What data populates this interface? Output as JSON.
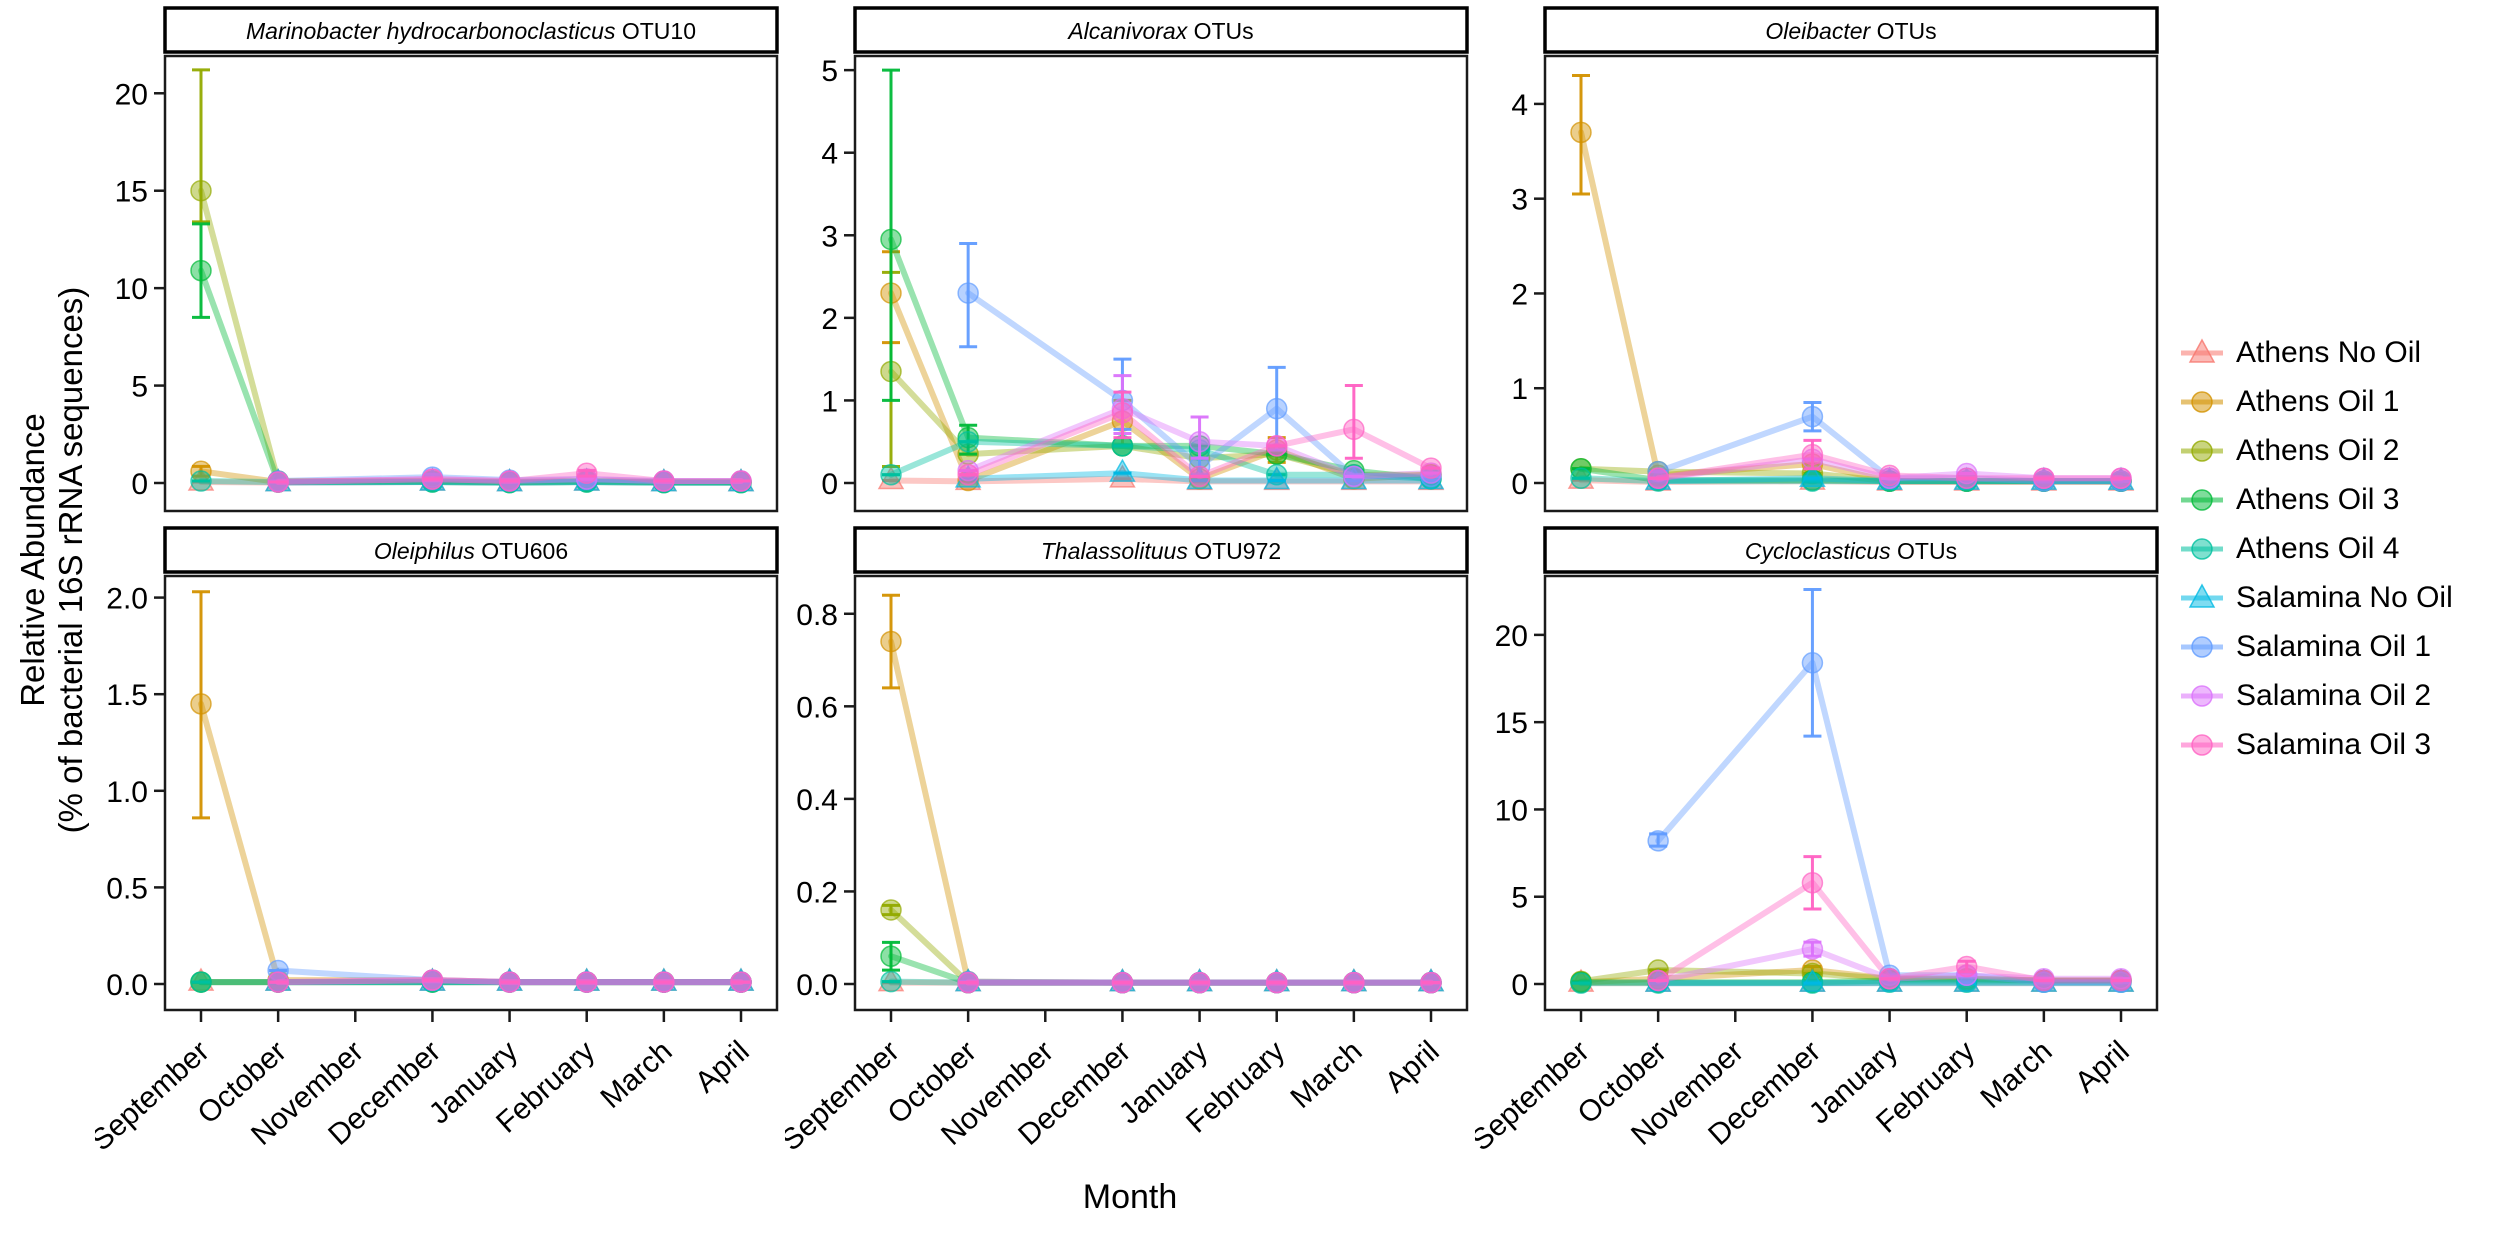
{
  "figure": {
    "y_axis_title_line1": "Relative Abundance",
    "y_axis_title_line2": "(% of bacterial 16S rRNA sequences)",
    "x_axis_title": "Month"
  },
  "chart_data": {
    "type": "line",
    "layout": "2x3 facet grid, independent y scales, shared categorical x axis, legend on right",
    "grid": "off",
    "legend_position": "right",
    "x_categories": [
      "September",
      "October",
      "November",
      "December",
      "January",
      "February",
      "March",
      "April"
    ],
    "november_unsampled": true,
    "xlabel": "Month",
    "ylabel": "Relative Abundance (% of bacterial 16S rRNA sequences)",
    "series": [
      {
        "name": "Athens No Oil",
        "color": "#F8766D",
        "marker": "triangle"
      },
      {
        "name": "Athens Oil 1",
        "color": "#D39200",
        "marker": "circle"
      },
      {
        "name": "Athens Oil 2",
        "color": "#93AA00",
        "marker": "circle"
      },
      {
        "name": "Athens Oil 3",
        "color": "#00BA38",
        "marker": "circle"
      },
      {
        "name": "Athens Oil 4",
        "color": "#00C19F",
        "marker": "circle"
      },
      {
        "name": "Salamina No Oil",
        "color": "#00B9E3",
        "marker": "triangle"
      },
      {
        "name": "Salamina Oil 1",
        "color": "#619CFF",
        "marker": "circle"
      },
      {
        "name": "Salamina Oil 2",
        "color": "#DB72FB",
        "marker": "circle"
      },
      {
        "name": "Salamina Oil 3",
        "color": "#FF61C3",
        "marker": "circle"
      }
    ],
    "facets": [
      {
        "title_italic": "Marinobacter hydrocarbonoclasticus",
        "title_rest": " OTU10",
        "tick_vals": [
          0,
          5,
          10,
          15,
          20
        ],
        "tick_labels": [
          "0",
          "5",
          "10",
          "15",
          "20"
        ],
        "vmax": 21.4,
        "series": [
          {
            "v": [
              0.05,
              0.02,
              null,
              0.05,
              0.02,
              0.05,
              0.02,
              0.02
            ]
          },
          {
            "v": [
              0.6,
              0.05,
              null,
              0.1,
              0.05,
              0.1,
              0.05,
              0.05
            ],
            "eb": {
              "0": [
                0.35,
                0.85
              ]
            }
          },
          {
            "v": [
              15.0,
              0.1,
              null,
              0.1,
              0.05,
              0.1,
              0.05,
              0.05
            ],
            "eb": {
              "0": [
                13.4,
                21.2
              ]
            }
          },
          {
            "v": [
              10.9,
              0.05,
              null,
              0.05,
              0.02,
              0.05,
              0.02,
              0.02
            ],
            "eb": {
              "0": [
                8.5,
                13.3
              ]
            }
          },
          {
            "v": [
              0.1,
              0.05,
              null,
              0.05,
              0.02,
              0.05,
              0.02,
              0.02
            ]
          },
          {
            "v": [
              null,
              0.02,
              null,
              0.05,
              0.02,
              0.05,
              0.02,
              0.02
            ]
          },
          {
            "v": [
              null,
              0.1,
              null,
              0.3,
              0.15,
              0.2,
              0.1,
              0.1
            ],
            "eb": {
              "3": [
                0.15,
                0.45
              ]
            }
          },
          {
            "v": [
              null,
              0.05,
              null,
              0.2,
              0.1,
              0.2,
              0.1,
              0.1
            ]
          },
          {
            "v": [
              null,
              0.05,
              null,
              0.2,
              0.1,
              0.5,
              0.1,
              0.1
            ],
            "eb": {
              "5": [
                0.35,
                0.65
              ]
            }
          }
        ]
      },
      {
        "title_italic": "Alcanivorax",
        "title_rest": " OTUs",
        "tick_vals": [
          0,
          1,
          2,
          3,
          4,
          5
        ],
        "tick_labels": [
          "0",
          "1",
          "2",
          "3",
          "4",
          "5"
        ],
        "vmax": 5.05,
        "series": [
          {
            "v": [
              0.03,
              0.02,
              null,
              0.05,
              0.02,
              0.02,
              0.02,
              0.02
            ]
          },
          {
            "v": [
              2.3,
              0.03,
              null,
              0.75,
              0.05,
              0.4,
              0.05,
              0.1
            ],
            "eb": {
              "0": [
                1.7,
                2.8
              ],
              "3": [
                0.45,
                1.0
              ],
              "5": [
                0.25,
                0.55
              ]
            }
          },
          {
            "v": [
              1.35,
              0.35,
              null,
              0.45,
              0.3,
              0.35,
              0.1,
              0.1
            ],
            "eb": {
              "0": [
                0.2,
                2.55
              ]
            }
          },
          {
            "v": [
              2.95,
              0.55,
              null,
              0.45,
              0.45,
              0.35,
              0.15,
              0.05
            ],
            "eb": {
              "0": [
                1.0,
                5.0
              ],
              "1": [
                0.35,
                0.7
              ]
            }
          },
          {
            "v": [
              0.1,
              0.5,
              null,
              0.45,
              0.4,
              0.1,
              0.1,
              0.05
            ]
          },
          {
            "v": [
              null,
              0.05,
              null,
              0.12,
              0.03,
              0.03,
              0.03,
              0.03
            ]
          },
          {
            "v": [
              null,
              2.3,
              null,
              1.0,
              0.2,
              0.9,
              0.08,
              0.08
            ],
            "eb": {
              "1": [
                1.65,
                2.9
              ],
              "3": [
                0.65,
                1.5
              ],
              "4": [
                0.1,
                0.3
              ],
              "5": [
                0.4,
                1.4
              ]
            }
          },
          {
            "v": [
              null,
              0.15,
              null,
              0.9,
              0.5,
              0.45,
              0.08,
              0.12
            ],
            "eb": {
              "3": [
                0.6,
                1.3
              ],
              "4": [
                0.3,
                0.8
              ]
            }
          },
          {
            "v": [
              null,
              0.1,
              null,
              0.85,
              0.08,
              0.45,
              0.65,
              0.18
            ],
            "eb": {
              "3": [
                0.55,
                1.1
              ],
              "6": [
                0.3,
                1.18
              ]
            }
          }
        ]
      },
      {
        "title_italic": "Oleibacter",
        "title_rest": " OTUs",
        "tick_vals": [
          0,
          1,
          2,
          3,
          4
        ],
        "tick_labels": [
          "0",
          "1",
          "2",
          "3",
          "4"
        ],
        "vmax": 4.4,
        "series": [
          {
            "v": [
              0.03,
              0.01,
              null,
              0.02,
              0.01,
              0.01,
              0.01,
              0.01
            ]
          },
          {
            "v": [
              3.7,
              0.08,
              null,
              0.2,
              0.02,
              0.02,
              0.02,
              0.02
            ],
            "eb": {
              "0": [
                3.05,
                4.3
              ]
            }
          },
          {
            "v": [
              0.15,
              0.12,
              null,
              0.1,
              0.02,
              0.02,
              0.02,
              0.02
            ]
          },
          {
            "v": [
              0.15,
              0.03,
              null,
              0.03,
              0.02,
              0.02,
              0.02,
              0.02
            ]
          },
          {
            "v": [
              0.05,
              0.02,
              null,
              0.02,
              0.02,
              0.02,
              0.02,
              0.02
            ]
          },
          {
            "v": [
              null,
              0.02,
              null,
              0.05,
              0.02,
              0.02,
              0.02,
              0.02
            ]
          },
          {
            "v": [
              null,
              0.12,
              null,
              0.7,
              0.05,
              0.05,
              0.02,
              0.02
            ],
            "eb": {
              "3": [
                0.55,
                0.85
              ]
            }
          },
          {
            "v": [
              null,
              0.05,
              null,
              0.25,
              0.05,
              0.1,
              0.05,
              0.05
            ]
          },
          {
            "v": [
              null,
              0.05,
              null,
              0.3,
              0.08,
              0.05,
              0.05,
              0.05
            ],
            "eb": {
              "3": [
                0.15,
                0.45
              ]
            }
          }
        ]
      },
      {
        "title_italic": "Oleiphilus",
        "title_rest": " OTU606",
        "tick_vals": [
          0,
          0.5,
          1,
          1.5,
          2
        ],
        "tick_labels": [
          "0.0",
          "0.5",
          "1.0",
          "1.5",
          "2.0"
        ],
        "vmax": 2.06,
        "series": [
          {
            "v": [
              0.01,
              0.01,
              null,
              0.01,
              0.01,
              0.01,
              0.01,
              0.01
            ]
          },
          {
            "v": [
              1.45,
              0.02,
              null,
              0.02,
              0.01,
              0.01,
              0.01,
              0.01
            ],
            "eb": {
              "0": [
                0.86,
                2.03
              ]
            }
          },
          {
            "v": [
              0.01,
              0.01,
              null,
              0.01,
              0.01,
              0.01,
              0.01,
              0.01
            ]
          },
          {
            "v": [
              0.01,
              0.01,
              null,
              0.01,
              0.01,
              0.01,
              0.01,
              0.01
            ]
          },
          {
            "v": [
              0.01,
              0.01,
              null,
              0.01,
              0.01,
              0.01,
              0.01,
              0.01
            ]
          },
          {
            "v": [
              null,
              0.01,
              null,
              0.01,
              0.01,
              0.01,
              0.01,
              0.01
            ]
          },
          {
            "v": [
              null,
              0.07,
              null,
              0.02,
              0.01,
              0.01,
              0.01,
              0.01
            ]
          },
          {
            "v": [
              null,
              0.01,
              null,
              0.02,
              0.01,
              0.01,
              0.01,
              0.01
            ]
          },
          {
            "v": [
              null,
              0.01,
              null,
              0.02,
              0.01,
              0.01,
              0.01,
              0.01
            ]
          }
        ]
      },
      {
        "title_italic": "Thalassolituus",
        "title_rest": " OTU972",
        "tick_vals": [
          0,
          0.2,
          0.4,
          0.6,
          0.8
        ],
        "tick_labels": [
          "0.0",
          "0.2",
          "0.4",
          "0.6",
          "0.8"
        ],
        "vmax": 0.86,
        "series": [
          {
            "v": [
              0.003,
              0.003,
              null,
              0.003,
              0.003,
              0.003,
              0.003,
              0.003
            ]
          },
          {
            "v": [
              0.74,
              0.005,
              null,
              0.003,
              0.003,
              0.003,
              0.003,
              0.003
            ],
            "eb": {
              "0": [
                0.64,
                0.84
              ]
            }
          },
          {
            "v": [
              0.16,
              0.003,
              null,
              0.003,
              0.003,
              0.003,
              0.003,
              0.003
            ],
            "eb": {
              "0": [
                0.15,
                0.17
              ]
            }
          },
          {
            "v": [
              0.06,
              0.003,
              null,
              0.003,
              0.003,
              0.003,
              0.003,
              0.003
            ],
            "eb": {
              "0": [
                0.03,
                0.09
              ]
            }
          },
          {
            "v": [
              0.005,
              0.003,
              null,
              0.003,
              0.003,
              0.003,
              0.003,
              0.003
            ]
          },
          {
            "v": [
              null,
              0.003,
              null,
              0.003,
              0.003,
              0.003,
              0.003,
              0.003
            ]
          },
          {
            "v": [
              null,
              0.005,
              null,
              0.003,
              0.003,
              0.003,
              0.003,
              0.003
            ]
          },
          {
            "v": [
              null,
              0.003,
              null,
              0.003,
              0.003,
              0.003,
              0.003,
              0.003
            ]
          },
          {
            "v": [
              null,
              0.003,
              null,
              0.003,
              0.003,
              0.003,
              0.003,
              0.003
            ]
          }
        ]
      },
      {
        "title_italic": "Cycloclasticus",
        "title_rest": " OTUs",
        "tick_vals": [
          0,
          5,
          10,
          15,
          20
        ],
        "tick_labels": [
          "0",
          "5",
          "10",
          "15",
          "20"
        ],
        "vmax": 22.8,
        "series": [
          {
            "v": [
              0.05,
              0.05,
              null,
              0.05,
              0.05,
              0.05,
              0.05,
              0.05
            ]
          },
          {
            "v": [
              0.1,
              0.3,
              null,
              0.8,
              0.3,
              0.3,
              0.2,
              0.2
            ],
            "eb": {
              "3": [
                0.6,
                1.0
              ]
            }
          },
          {
            "v": [
              0.15,
              0.8,
              null,
              0.6,
              0.3,
              0.3,
              0.2,
              0.2
            ]
          },
          {
            "v": [
              0.1,
              0.1,
              null,
              0.1,
              0.2,
              0.2,
              0.2,
              0.2
            ]
          },
          {
            "v": [
              0.05,
              0.05,
              null,
              0.05,
              0.1,
              0.1,
              0.1,
              0.1
            ]
          },
          {
            "v": [
              null,
              0.05,
              null,
              0.05,
              0.05,
              0.05,
              0.05,
              0.05
            ]
          },
          {
            "v": [
              null,
              8.2,
              null,
              18.4,
              0.5,
              0.5,
              0.1,
              0.1
            ],
            "eb": {
              "1": [
                7.9,
                8.6
              ],
              "3": [
                14.2,
                22.6
              ]
            }
          },
          {
            "v": [
              null,
              0.2,
              null,
              2.0,
              0.3,
              0.5,
              0.3,
              0.3
            ],
            "eb": {
              "3": [
                1.6,
                2.4
              ]
            }
          },
          {
            "v": [
              null,
              0.2,
              null,
              5.8,
              0.3,
              1.0,
              0.2,
              0.2
            ],
            "eb": {
              "3": [
                4.3,
                7.3
              ],
              "5": [
                0.7,
                1.3
              ]
            }
          }
        ]
      }
    ]
  }
}
